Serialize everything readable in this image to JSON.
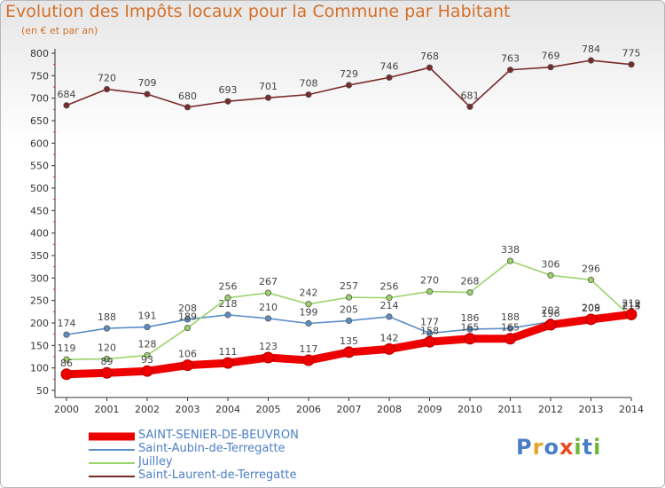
{
  "title": "Evolution des Impôts locaux pour la Commune par Habitant",
  "subtitle": "(en € et par an)",
  "logo": "Proxiti",
  "chart_data": {
    "type": "line",
    "categories": [
      "2000",
      "2001",
      "2002",
      "2003",
      "2004",
      "2005",
      "2006",
      "2007",
      "2008",
      "2009",
      "2010",
      "2011",
      "2012",
      "2013",
      "2014"
    ],
    "ylim": [
      50,
      800
    ],
    "yticks": [
      50,
      100,
      150,
      200,
      250,
      300,
      350,
      400,
      450,
      500,
      550,
      600,
      650,
      700,
      750,
      800
    ],
    "grid": false,
    "legend_position": "bottom-left",
    "series": [
      {
        "name": "Saint-Laurent-de-Terregatte",
        "color": "#7a2a2a",
        "values": [
          684,
          720,
          709,
          680,
          693,
          701,
          708,
          729,
          746,
          768,
          681,
          763,
          769,
          784,
          775
        ]
      },
      {
        "name": "Saint-Aubin-de-Terregatte",
        "color": "#5b8dc8",
        "values": [
          174,
          188,
          191,
          208,
          218,
          210,
          199,
          205,
          214,
          177,
          186,
          188,
          203,
          209,
          214
        ]
      },
      {
        "name": "Juilley",
        "color": "#9ad36a",
        "values": [
          119,
          120,
          128,
          189,
          256,
          267,
          242,
          257,
          256,
          270,
          268,
          338,
          306,
          296,
          213
        ]
      },
      {
        "name": "SAINT-SENIER-DE-BEUVRON",
        "color": "#ee0000",
        "values": [
          86,
          89,
          93,
          106,
          111,
          123,
          117,
          135,
          142,
          158,
          165,
          165,
          196,
          208,
          219
        ]
      }
    ]
  }
}
